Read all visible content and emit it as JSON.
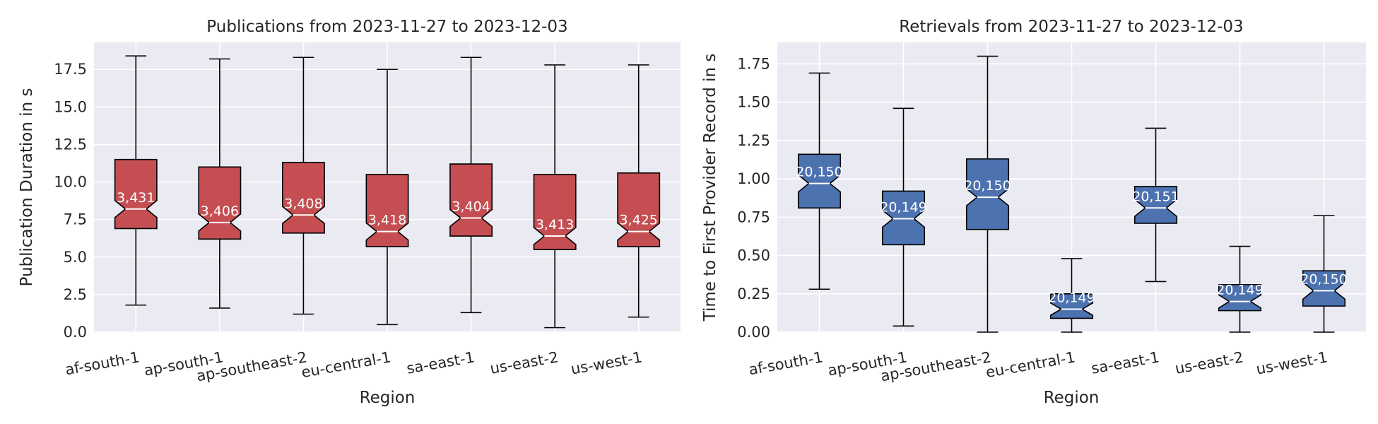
{
  "chart_data": [
    {
      "type": "box",
      "title": "Publications from 2023-11-27 to 2023-12-03",
      "xlabel": "Region",
      "ylabel": "Publication Duration in s",
      "ylim": [
        0,
        19.3
      ],
      "yticks": [
        0,
        2.5,
        5,
        7.5,
        10,
        12.5,
        15,
        17.5
      ],
      "ytick_labels": [
        "0.0",
        "2.5",
        "5.0",
        "7.5",
        "10.0",
        "12.5",
        "15.0",
        "17.5"
      ],
      "color": "#c44e52",
      "notched": true,
      "grid": true,
      "categories": [
        "af-south-1",
        "ap-south-1",
        "ap-southeast-2",
        "eu-central-1",
        "sa-east-1",
        "us-east-2",
        "us-west-1"
      ],
      "boxes": [
        {
          "whislo": 1.8,
          "q1": 6.9,
          "med": 8.2,
          "q3": 11.5,
          "whishi": 18.4,
          "count": "3,431"
        },
        {
          "whislo": 1.6,
          "q1": 6.2,
          "med": 7.3,
          "q3": 11.0,
          "whishi": 18.2,
          "count": "3,406"
        },
        {
          "whislo": 1.2,
          "q1": 6.6,
          "med": 7.8,
          "q3": 11.3,
          "whishi": 18.3,
          "count": "3,408"
        },
        {
          "whislo": 0.5,
          "q1": 5.7,
          "med": 6.7,
          "q3": 10.5,
          "whishi": 17.5,
          "count": "3,418"
        },
        {
          "whislo": 1.3,
          "q1": 6.4,
          "med": 7.6,
          "q3": 11.2,
          "whishi": 18.3,
          "count": "3,404"
        },
        {
          "whislo": 0.3,
          "q1": 5.5,
          "med": 6.4,
          "q3": 10.5,
          "whishi": 17.8,
          "count": "3,413"
        },
        {
          "whislo": 1.0,
          "q1": 5.7,
          "med": 6.7,
          "q3": 10.6,
          "whishi": 17.8,
          "count": "3,425"
        }
      ]
    },
    {
      "type": "box",
      "title": "Retrievals from 2023-11-27 to 2023-12-03",
      "xlabel": "Region",
      "ylabel": "Time to First Provider Record in s",
      "ylim": [
        0,
        1.89
      ],
      "yticks": [
        0,
        0.25,
        0.5,
        0.75,
        1.0,
        1.25,
        1.5,
        1.75
      ],
      "ytick_labels": [
        "0.00",
        "0.25",
        "0.50",
        "0.75",
        "1.00",
        "1.25",
        "1.50",
        "1.75"
      ],
      "color": "#4c72b0",
      "notched": true,
      "grid": true,
      "categories": [
        "af-south-1",
        "ap-south-1",
        "ap-southeast-2",
        "eu-central-1",
        "sa-east-1",
        "us-east-2",
        "us-west-1"
      ],
      "boxes": [
        {
          "whislo": 0.28,
          "q1": 0.81,
          "med": 0.97,
          "q3": 1.16,
          "whishi": 1.69,
          "count": "20,150"
        },
        {
          "whislo": 0.04,
          "q1": 0.57,
          "med": 0.74,
          "q3": 0.92,
          "whishi": 1.46,
          "count": "20,149"
        },
        {
          "whislo": 0.0,
          "q1": 0.67,
          "med": 0.88,
          "q3": 1.13,
          "whishi": 1.8,
          "count": "20,150"
        },
        {
          "whislo": 0.0,
          "q1": 0.09,
          "med": 0.15,
          "q3": 0.25,
          "whishi": 0.48,
          "count": "20,149"
        },
        {
          "whislo": 0.33,
          "q1": 0.71,
          "med": 0.81,
          "q3": 0.95,
          "whishi": 1.33,
          "count": "20,151"
        },
        {
          "whislo": 0.0,
          "q1": 0.14,
          "med": 0.2,
          "q3": 0.31,
          "whishi": 0.56,
          "count": "20,149"
        },
        {
          "whislo": 0.0,
          "q1": 0.17,
          "med": 0.27,
          "q3": 0.4,
          "whishi": 0.76,
          "count": "20,150"
        }
      ]
    }
  ]
}
